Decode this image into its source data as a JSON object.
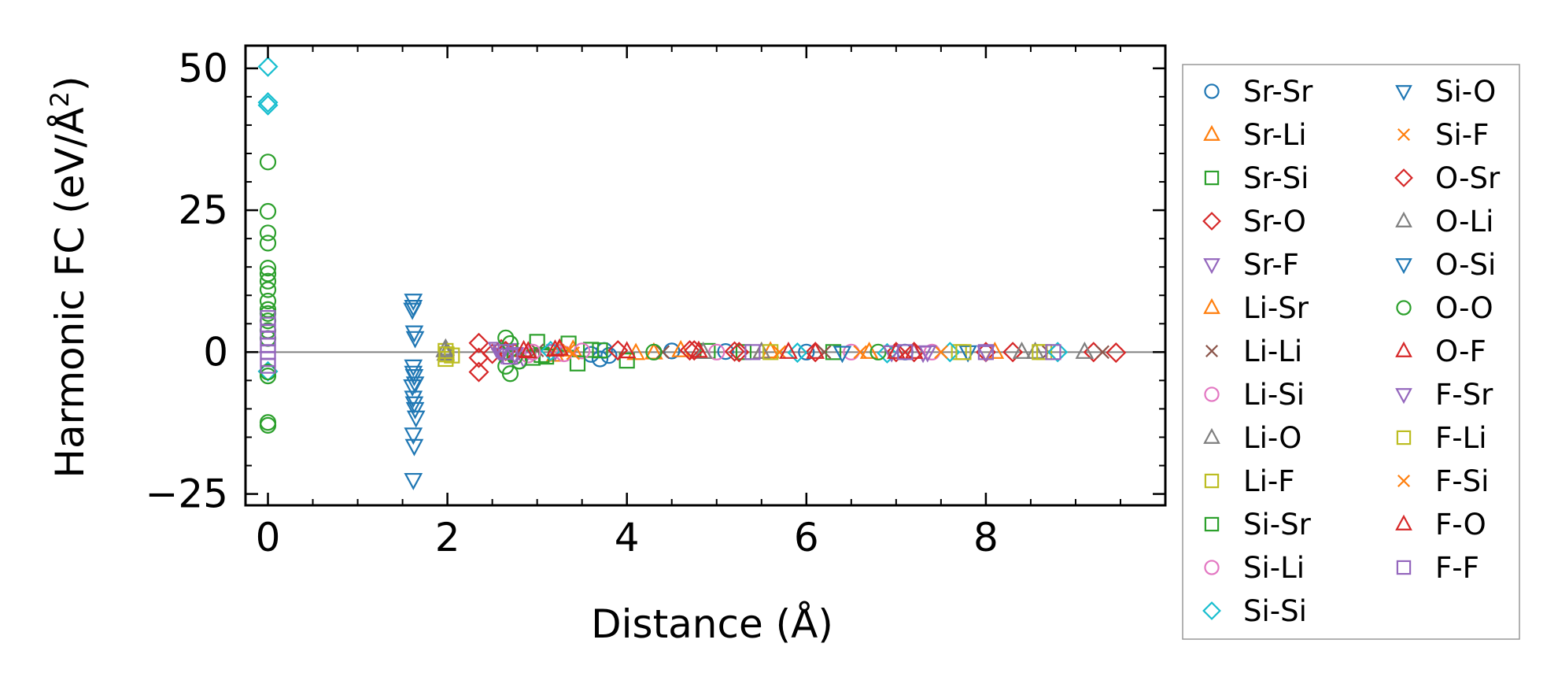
{
  "chart_data": {
    "type": "scatter",
    "xlabel": "Distance (Å)",
    "ylabel": "Harmonic FC (eV/Å²)",
    "ylabel_base": "Harmonic FC (eV/Å",
    "ylabel_sup": "2",
    "ylabel_close": ")",
    "xlim": [
      -0.25,
      10.0
    ],
    "ylim": [
      -27,
      54
    ],
    "xticks": [
      0,
      2,
      4,
      6,
      8
    ],
    "xtick_labels": [
      "0",
      "2",
      "4",
      "6",
      "8"
    ],
    "yticks": [
      -25,
      0,
      25,
      50
    ],
    "ytick_labels": [
      "−25",
      "0",
      "25",
      "50"
    ],
    "grid": false,
    "zero_line": true,
    "legend_position": "outside-right",
    "series": [
      {
        "name": "Sr-Sr",
        "marker": "circle",
        "color": "#1f77b4",
        "points": [
          [
            3.6,
            -0.4
          ],
          [
            3.7,
            -1.2
          ],
          [
            3.75,
            0.3
          ],
          [
            3.8,
            -0.6
          ],
          [
            4.5,
            0.2
          ],
          [
            5.1,
            0.1
          ],
          [
            6.0,
            0.0
          ],
          [
            7.1,
            0.0
          ]
        ]
      },
      {
        "name": "Sr-Li",
        "marker": "triangle-up",
        "color": "#ff7f0e",
        "points": [
          [
            3.2,
            -0.5
          ],
          [
            3.4,
            0.4
          ],
          [
            4.1,
            -0.2
          ],
          [
            4.6,
            0.3
          ],
          [
            5.6,
            0.1
          ],
          [
            6.7,
            0.0
          ]
        ]
      },
      {
        "name": "Sr-Si",
        "marker": "square",
        "color": "#2ca02c",
        "points": [
          [
            2.95,
            -1.0
          ],
          [
            3.0,
            1.8
          ],
          [
            3.1,
            -0.8
          ],
          [
            3.35,
            1.5
          ],
          [
            3.6,
            0.4
          ],
          [
            4.0,
            -1.5
          ],
          [
            4.9,
            0.2
          ],
          [
            6.3,
            0.0
          ]
        ]
      },
      {
        "name": "Sr-O",
        "marker": "diamond",
        "color": "#d62728",
        "points": [
          [
            2.35,
            1.6
          ],
          [
            2.35,
            -1.0
          ],
          [
            2.35,
            -3.5
          ],
          [
            2.5,
            -0.3
          ],
          [
            2.6,
            0.5
          ],
          [
            2.75,
            -0.2
          ],
          [
            3.9,
            0.3
          ],
          [
            4.7,
            0.3
          ],
          [
            5.2,
            0.1
          ],
          [
            6.1,
            0.0
          ],
          [
            7.0,
            0.0
          ],
          [
            8.0,
            0.0
          ],
          [
            9.2,
            0.0
          ],
          [
            9.45,
            -0.1
          ]
        ]
      },
      {
        "name": "Sr-F",
        "marker": "triangle-down",
        "color": "#9467bd",
        "points": [
          [
            2.55,
            0.6
          ],
          [
            2.6,
            -0.4
          ],
          [
            2.7,
            0.4
          ],
          [
            2.85,
            -1.1
          ],
          [
            3.2,
            0.2
          ],
          [
            7.3,
            -0.1
          ]
        ]
      },
      {
        "name": "Li-Sr",
        "marker": "triangle-up",
        "color": "#ff7f0e",
        "points": [
          [
            3.25,
            0.4
          ],
          [
            4.3,
            -0.1
          ],
          [
            5.5,
            0.0
          ],
          [
            8.1,
            0.0
          ]
        ]
      },
      {
        "name": "Li-Li",
        "marker": "x",
        "color": "#8c564b",
        "points": [
          [
            3.0,
            0.3
          ],
          [
            4.4,
            0.0
          ],
          [
            6.2,
            0.0
          ],
          [
            8.7,
            0.0
          ],
          [
            9.3,
            0.0
          ]
        ]
      },
      {
        "name": "Li-Si",
        "marker": "circle",
        "color": "#e377c2",
        "points": [
          [
            2.9,
            -0.5
          ],
          [
            3.5,
            0.2
          ],
          [
            5.0,
            0.0
          ],
          [
            7.4,
            0.0
          ]
        ]
      },
      {
        "name": "Li-O",
        "marker": "triangle-up",
        "color": "#7f7f7f",
        "points": [
          [
            1.98,
            0.6
          ],
          [
            1.98,
            -0.3
          ],
          [
            4.85,
            0.0
          ],
          [
            8.55,
            0.0
          ],
          [
            9.1,
            0.0
          ]
        ]
      },
      {
        "name": "Li-F",
        "marker": "square",
        "color": "#bcbd22",
        "points": [
          [
            1.98,
            -1.2
          ],
          [
            1.98,
            0.2
          ],
          [
            2.05,
            -0.6
          ],
          [
            7.7,
            0.0
          ],
          [
            8.65,
            0.0
          ]
        ]
      },
      {
        "name": "Si-Sr",
        "marker": "square",
        "color": "#2ca02c",
        "points": [
          [
            3.05,
            -0.5
          ],
          [
            3.45,
            -2.0
          ],
          [
            3.7,
            0.3
          ],
          [
            5.3,
            0.0
          ]
        ]
      },
      {
        "name": "Si-Li",
        "marker": "circle",
        "color": "#e377c2",
        "points": [
          [
            2.95,
            0.0
          ],
          [
            3.3,
            -0.3
          ],
          [
            6.5,
            0.0
          ]
        ]
      },
      {
        "name": "Si-Si",
        "marker": "diamond",
        "color": "#17becf",
        "points": [
          [
            0,
            50.3
          ],
          [
            0,
            44.0
          ],
          [
            0,
            43.5
          ],
          [
            0,
            -3.4
          ],
          [
            3.15,
            0.2
          ],
          [
            5.9,
            -0.1
          ],
          [
            6.9,
            -0.2
          ],
          [
            7.6,
            0.0
          ],
          [
            8.8,
            0.0
          ]
        ]
      },
      {
        "name": "Si-O",
        "marker": "triangle-down",
        "color": "#1f77b4",
        "points": [
          [
            1.62,
            9.1
          ],
          [
            1.62,
            8.0
          ],
          [
            1.63,
            3.5
          ],
          [
            1.64,
            2.5
          ],
          [
            1.62,
            -2.5
          ],
          [
            1.62,
            -3.6
          ],
          [
            1.63,
            -4.2
          ],
          [
            1.64,
            -5.5
          ],
          [
            1.62,
            -8.0
          ],
          [
            1.63,
            -9.0
          ],
          [
            1.64,
            -10.0
          ],
          [
            1.65,
            -11.5
          ],
          [
            1.62,
            -14.5
          ],
          [
            1.63,
            -16.5
          ],
          [
            1.62,
            -22.5
          ]
        ]
      },
      {
        "name": "Si-F",
        "marker": "x",
        "color": "#ff7f0e",
        "points": [
          [
            3.35,
            0.3
          ],
          [
            5.7,
            0.0
          ],
          [
            7.5,
            0.0
          ]
        ]
      },
      {
        "name": "O-Sr",
        "marker": "diamond",
        "color": "#d62728",
        "points": [
          [
            2.65,
            0.2
          ],
          [
            4.75,
            0.3
          ],
          [
            5.25,
            0.0
          ],
          [
            7.2,
            0.0
          ],
          [
            8.3,
            0.0
          ]
        ]
      },
      {
        "name": "O-Li",
        "marker": "triangle-up",
        "color": "#7f7f7f",
        "points": [
          [
            1.97,
            0.3
          ],
          [
            5.5,
            0.0
          ],
          [
            8.4,
            0.0
          ]
        ]
      },
      {
        "name": "O-Si",
        "marker": "triangle-down",
        "color": "#1f77b4",
        "points": [
          [
            1.61,
            7.5
          ],
          [
            1.61,
            -6.0
          ],
          [
            6.4,
            -0.1
          ],
          [
            7.8,
            0.0
          ]
        ]
      },
      {
        "name": "O-O",
        "marker": "circle",
        "color": "#2ca02c",
        "points": [
          [
            0,
            33.5
          ],
          [
            0,
            24.8
          ],
          [
            0,
            21.0
          ],
          [
            0,
            19.2
          ],
          [
            0,
            14.8
          ],
          [
            0,
            13.8
          ],
          [
            0,
            12.5
          ],
          [
            0,
            11.0
          ],
          [
            0,
            9.0
          ],
          [
            0,
            7.5
          ],
          [
            0,
            6.8
          ],
          [
            0,
            5.5
          ],
          [
            0,
            3.8
          ],
          [
            0,
            2.4
          ],
          [
            0,
            -3.5
          ],
          [
            0,
            -4.2
          ],
          [
            0,
            -12.4
          ],
          [
            0,
            -12.9
          ],
          [
            2.65,
            2.5
          ],
          [
            2.7,
            1.5
          ],
          [
            2.75,
            -0.8
          ],
          [
            2.65,
            -2.5
          ],
          [
            2.7,
            -3.8
          ],
          [
            2.8,
            -1.6
          ],
          [
            4.3,
            0.0
          ],
          [
            6.8,
            0.0
          ]
        ]
      },
      {
        "name": "O-F",
        "marker": "triangle-up",
        "color": "#d62728",
        "points": [
          [
            2.9,
            0.1
          ],
          [
            3.2,
            0.4
          ],
          [
            4.8,
            0.2
          ],
          [
            6.1,
            0.0
          ],
          [
            7.2,
            0.0
          ]
        ]
      },
      {
        "name": "F-Sr",
        "marker": "triangle-down",
        "color": "#9467bd",
        "points": [
          [
            2.6,
            0.2
          ],
          [
            2.75,
            -0.3
          ],
          [
            6.95,
            0.0
          ],
          [
            7.35,
            0.0
          ],
          [
            8.0,
            0.0
          ]
        ]
      },
      {
        "name": "F-Li",
        "marker": "square",
        "color": "#bcbd22",
        "points": [
          [
            1.99,
            -0.4
          ],
          [
            5.6,
            0.0
          ],
          [
            7.75,
            0.0
          ],
          [
            8.6,
            0.0
          ]
        ]
      },
      {
        "name": "F-Si",
        "marker": "x",
        "color": "#ff7f0e",
        "points": [
          [
            3.4,
            -0.2
          ],
          [
            5.7,
            0.0
          ],
          [
            6.6,
            0.0
          ]
        ]
      },
      {
        "name": "F-O",
        "marker": "triangle-up",
        "color": "#d62728",
        "points": [
          [
            2.85,
            0.3
          ],
          [
            3.25,
            0.6
          ],
          [
            4.0,
            0.1
          ],
          [
            5.8,
            0.0
          ],
          [
            7.0,
            0.0
          ]
        ]
      },
      {
        "name": "F-F",
        "marker": "square",
        "color": "#9467bd",
        "points": [
          [
            0,
            6.0
          ],
          [
            0,
            4.8
          ],
          [
            0,
            3.6
          ],
          [
            0,
            2.4
          ],
          [
            0,
            1.2
          ],
          [
            0,
            0.0
          ],
          [
            0,
            -1.2
          ],
          [
            0,
            -2.4
          ],
          [
            2.65,
            0.0
          ],
          [
            2.7,
            -0.8
          ],
          [
            5.4,
            0.0
          ],
          [
            7.1,
            0.0
          ],
          [
            8.0,
            0.0
          ],
          [
            8.75,
            0.0
          ]
        ]
      }
    ]
  }
}
